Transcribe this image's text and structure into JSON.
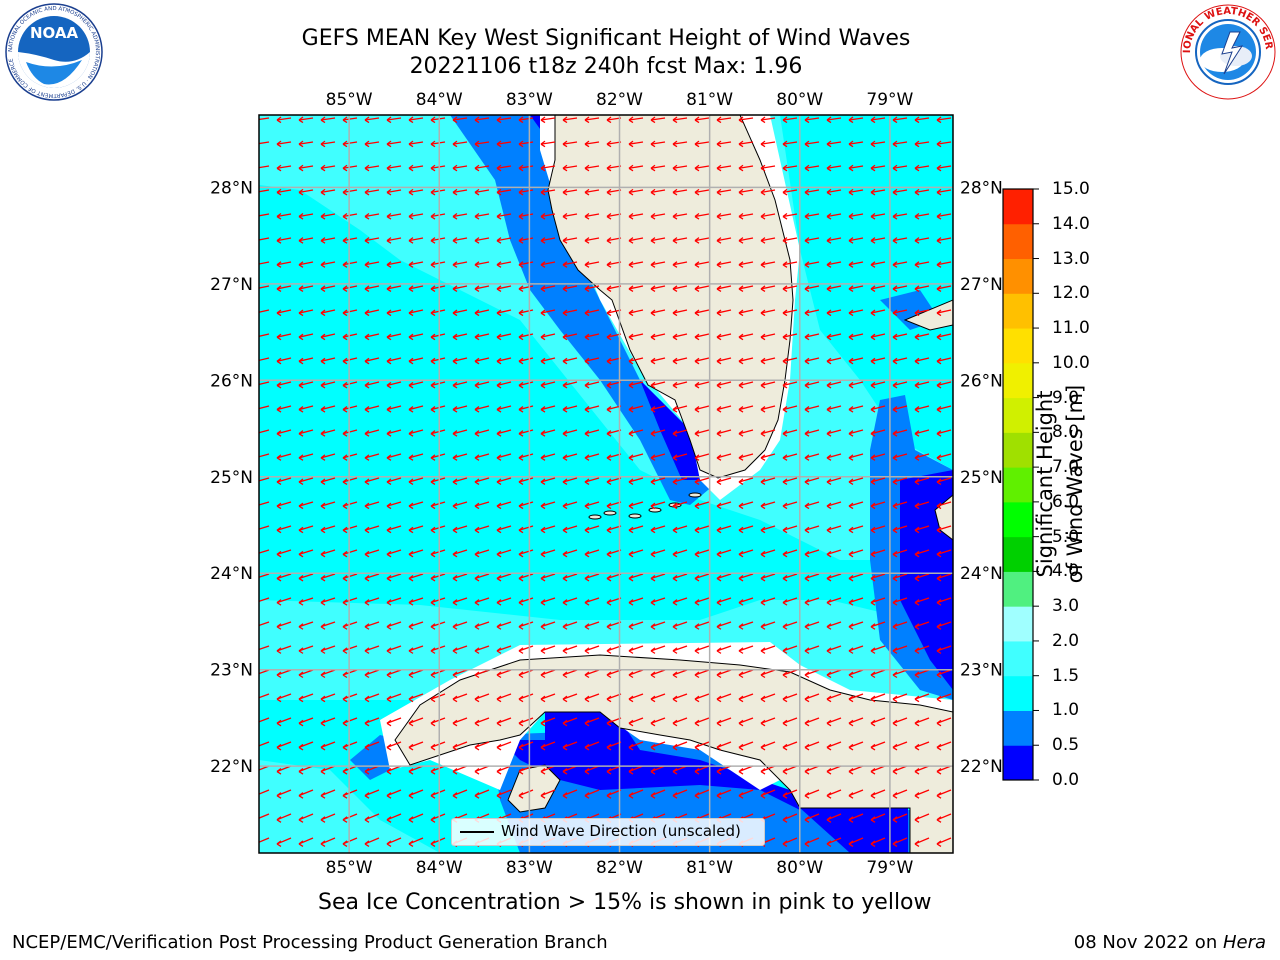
{
  "header": {
    "title_line1": "GEFS MEAN Key West Significant Height of Wind Waves",
    "title_line2": "20221106 t18z 240h fcst   Max: 1.96"
  },
  "logos": {
    "left": {
      "name": "noaa-logo",
      "text": "NOAA",
      "ring_text": "NATIONAL OCEANIC AND ATMOSPHERIC ADMINISTRATION · U.S. DEPARTMENT OF COMMERCE"
    },
    "right": {
      "name": "nws-logo",
      "ring_text": "NATIONAL WEATHER SERVICE"
    }
  },
  "map": {
    "lon_labels": [
      "85°W",
      "84°W",
      "83°W",
      "82°W",
      "81°W",
      "80°W",
      "79°W"
    ],
    "lat_labels": [
      "28°N",
      "27°N",
      "26°N",
      "25°N",
      "24°N",
      "23°N",
      "22°N"
    ],
    "lon_values": [
      -85,
      -84,
      -83,
      -82,
      -81,
      -80,
      -79
    ],
    "lat_values": [
      28,
      27,
      26,
      25,
      24,
      23,
      22
    ],
    "lon_range": [
      -86.0,
      -78.3
    ],
    "lat_range": [
      21.1,
      28.75
    ],
    "legend_label": "Wind Wave Direction (unscaled)",
    "arrow_color": "#ff0000",
    "land_color": "#eeecdc",
    "gridline_color": "#b0b0b0"
  },
  "colorbar": {
    "title": "Significant Height of Wind Waves [m]",
    "ticks": [
      "0.0",
      "0.5",
      "1.0",
      "1.5",
      "2.0",
      "3.0",
      "4.0",
      "5.0",
      "6.0",
      "7.0",
      "8.0",
      "9.0",
      "10.0",
      "11.0",
      "12.0",
      "13.0",
      "14.0",
      "15.0"
    ],
    "colors": [
      "#0000ff",
      "#0080ff",
      "#00ffff",
      "#40ffff",
      "#a0ffff",
      "#50f080",
      "#00d000",
      "#00ff00",
      "#60f000",
      "#a0e000",
      "#d0f000",
      "#f0f000",
      "#ffe000",
      "#ffc000",
      "#ff9000",
      "#ff6000",
      "#ff2000"
    ]
  },
  "footer": {
    "sea_ice_note": "Sea Ice Concentration > 15% is shown in pink to yellow",
    "left": "NCEP/EMC/Verification Post Processing Product Generation Branch",
    "right_prefix": "08 Nov 2022 on ",
    "right_host": "Hera"
  }
}
